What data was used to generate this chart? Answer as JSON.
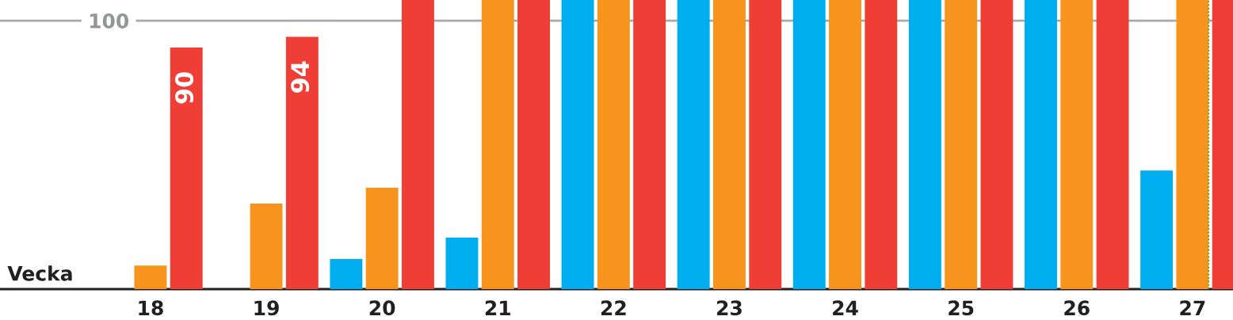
{
  "chart_data": {
    "type": "bar",
    "xlabel": "Vecka",
    "categories": [
      "18",
      "19",
      "20",
      "21",
      "22",
      "23",
      "24",
      "25",
      "26",
      "27"
    ],
    "series": [
      {
        "color": "#00adef",
        "values": [
          null,
          null,
          11.2,
          19.2,
          107.7,
          107.7,
          107.7,
          107.7,
          107.7,
          44.2
        ]
      },
      {
        "color": "#f7941d",
        "values": [
          8.8,
          31.9,
          37.8,
          107.7,
          107.7,
          107.7,
          107.7,
          107.7,
          107.7,
          107.7
        ]
      },
      {
        "color": "#ef3e36",
        "values": [
          90,
          94,
          107.7,
          107.7,
          107.7,
          107.7,
          107.7,
          107.7,
          107.7,
          107.7
        ],
        "value_labels": [
          "90",
          "94",
          null,
          null,
          null,
          null,
          null,
          null,
          null,
          null
        ]
      }
    ],
    "ylim": [
      0,
      107.7
    ],
    "yticks": [
      100
    ],
    "grid": "y",
    "legend": false,
    "ref_lines": [
      {
        "axis": "x",
        "value": "27",
        "color": "#2ca02c",
        "line_style": "dotted"
      }
    ]
  }
}
